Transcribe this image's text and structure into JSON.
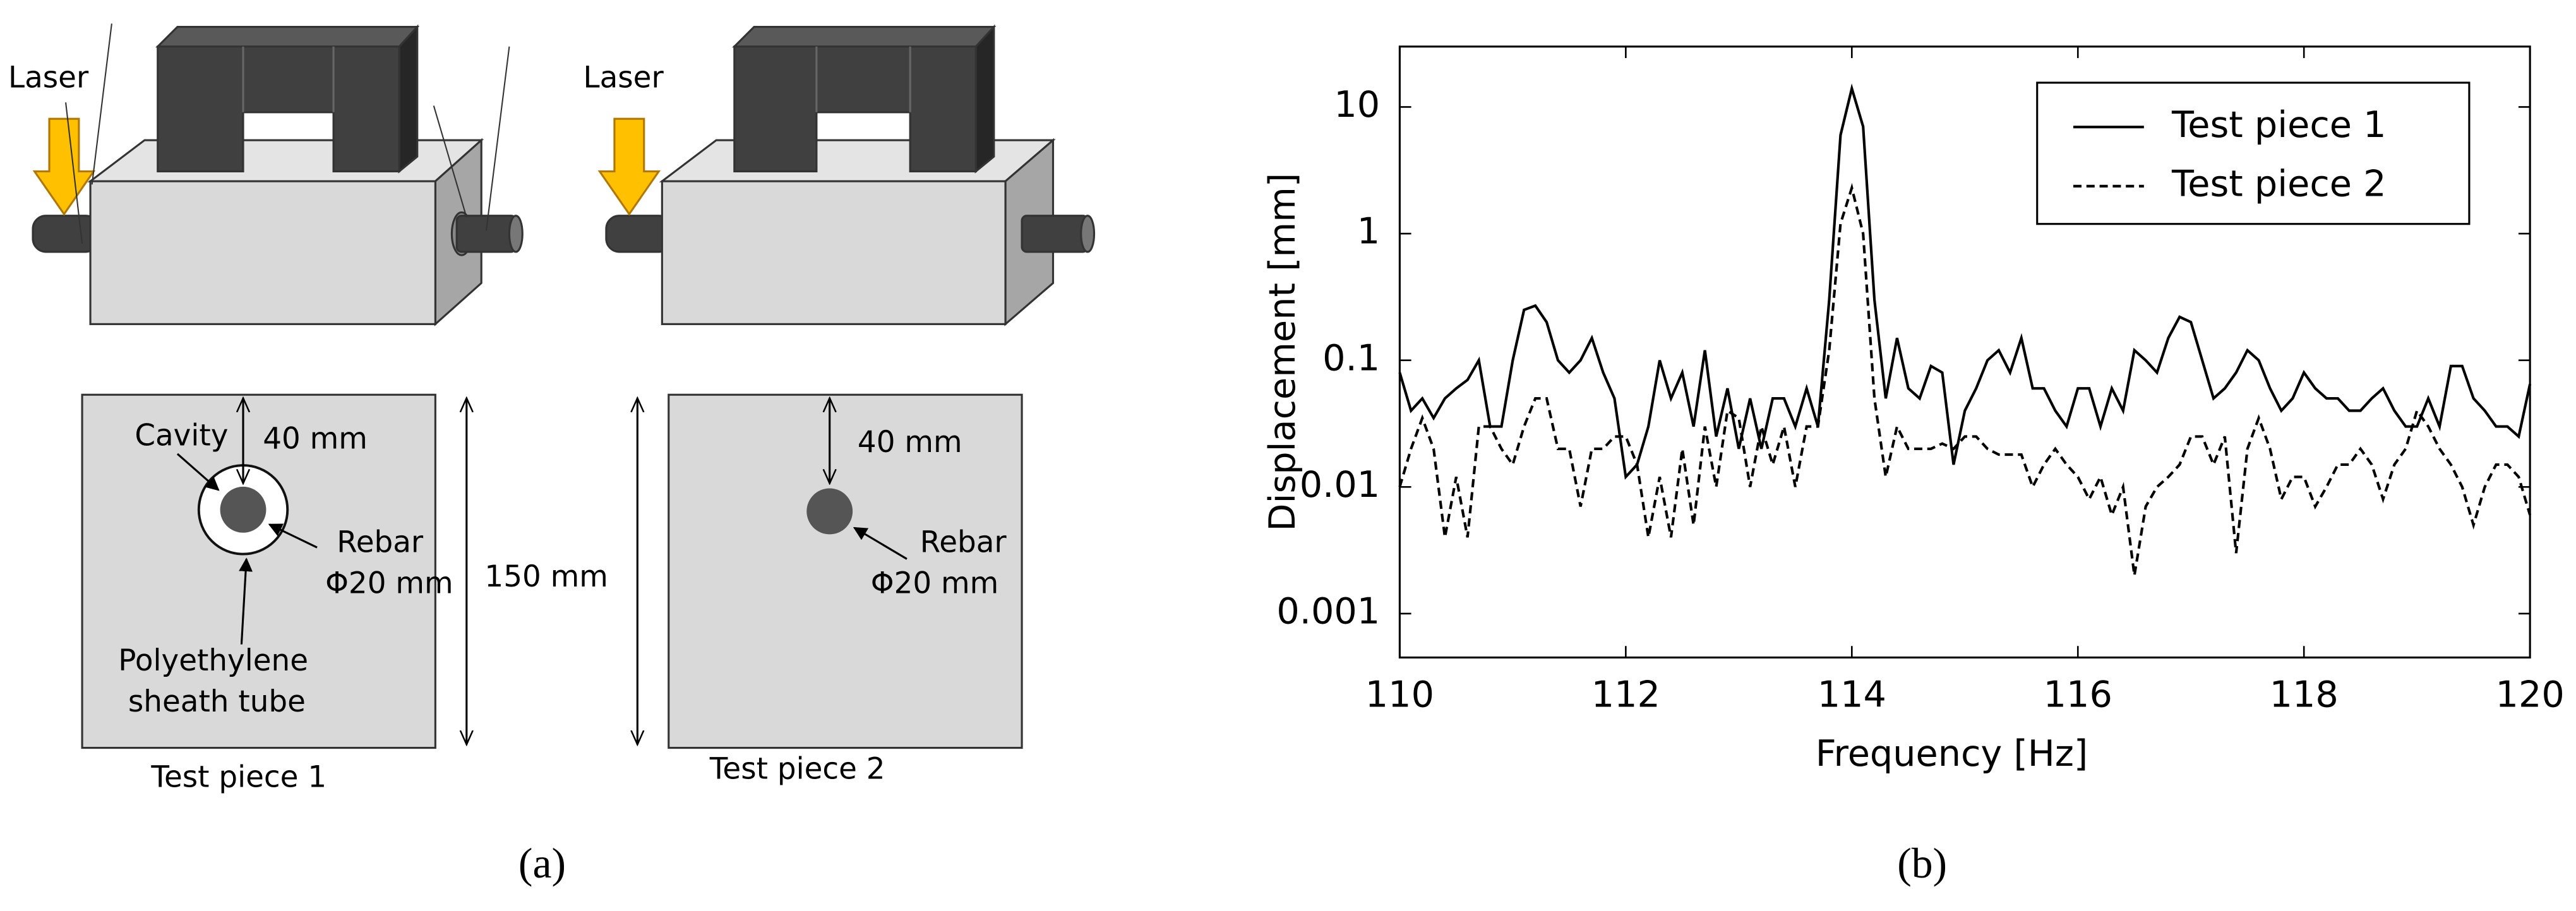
{
  "diagram": {
    "piece1": {
      "laser": "Laser",
      "cavity": "Cavity",
      "cover": "40 mm",
      "rebar": "Rebar",
      "rebar_size": "Φ20 mm",
      "sheath_line1": "Polyethylene",
      "sheath_line2": "sheath tube",
      "caption": "Test piece 1"
    },
    "piece2": {
      "laser": "Laser",
      "cover": "40 mm",
      "rebar": "Rebar",
      "rebar_size": "Φ20 mm",
      "caption": "Test piece 2"
    },
    "height": "150 mm",
    "panel_labels": [
      "(a)",
      "(b)"
    ]
  },
  "chart_data": {
    "type": "line",
    "xlabel": "Frequency [Hz]",
    "ylabel": "Displacement [mm]",
    "y_scale": "log",
    "grid": false,
    "legend": "upper right",
    "xlim": [
      110,
      120
    ],
    "xticks": [
      110,
      112,
      114,
      116,
      118,
      120
    ],
    "ylim": [
      0.00045,
      30
    ],
    "yticks": [
      0.001,
      0.01,
      0.1,
      1,
      10
    ],
    "x": [
      110.0,
      110.1,
      110.2,
      110.3,
      110.4,
      110.5,
      110.6,
      110.7,
      110.8,
      110.9,
      111.0,
      111.1,
      111.2,
      111.3,
      111.4,
      111.5,
      111.6,
      111.7,
      111.8,
      111.9,
      112.0,
      112.1,
      112.2,
      112.3,
      112.4,
      112.5,
      112.6,
      112.7,
      112.8,
      112.9,
      113.0,
      113.1,
      113.2,
      113.3,
      113.4,
      113.5,
      113.6,
      113.7,
      113.8,
      113.9,
      114.0,
      114.1,
      114.2,
      114.3,
      114.4,
      114.5,
      114.6,
      114.7,
      114.8,
      114.9,
      115.0,
      115.1,
      115.2,
      115.3,
      115.4,
      115.5,
      115.6,
      115.7,
      115.8,
      115.9,
      116.0,
      116.1,
      116.2,
      116.3,
      116.4,
      116.5,
      116.6,
      116.7,
      116.8,
      116.9,
      117.0,
      117.1,
      117.2,
      117.3,
      117.4,
      117.5,
      117.6,
      117.7,
      117.8,
      117.9,
      118.0,
      118.1,
      118.2,
      118.3,
      118.4,
      118.5,
      118.6,
      118.7,
      118.8,
      118.9,
      119.0,
      119.1,
      119.2,
      119.3,
      119.4,
      119.5,
      119.6,
      119.7,
      119.8,
      119.9,
      120.0
    ],
    "series": [
      {
        "name": "Test piece 1",
        "color": "#000000",
        "dash": "solid",
        "values": [
          0.08,
          0.04,
          0.05,
          0.035,
          0.05,
          0.06,
          0.07,
          0.1,
          0.03,
          0.03,
          0.1,
          0.25,
          0.27,
          0.2,
          0.1,
          0.08,
          0.1,
          0.15,
          0.08,
          0.05,
          0.012,
          0.015,
          0.03,
          0.1,
          0.05,
          0.08,
          0.03,
          0.12,
          0.025,
          0.06,
          0.02,
          0.05,
          0.02,
          0.05,
          0.05,
          0.03,
          0.06,
          0.03,
          0.3,
          6,
          14,
          7,
          0.3,
          0.05,
          0.15,
          0.06,
          0.05,
          0.09,
          0.08,
          0.015,
          0.04,
          0.06,
          0.1,
          0.12,
          0.08,
          0.15,
          0.06,
          0.06,
          0.04,
          0.03,
          0.06,
          0.06,
          0.03,
          0.06,
          0.04,
          0.12,
          0.1,
          0.08,
          0.15,
          0.22,
          0.2,
          0.1,
          0.05,
          0.06,
          0.08,
          0.12,
          0.1,
          0.06,
          0.04,
          0.05,
          0.08,
          0.06,
          0.05,
          0.05,
          0.04,
          0.04,
          0.05,
          0.06,
          0.04,
          0.03,
          0.03,
          0.05,
          0.03,
          0.09,
          0.09,
          0.05,
          0.04,
          0.03,
          0.03,
          0.025,
          0.065
        ]
      },
      {
        "name": "Test piece 2",
        "color": "#000000",
        "dash": "dashed",
        "values": [
          0.01,
          0.02,
          0.035,
          0.02,
          0.004,
          0.012,
          0.004,
          0.03,
          0.03,
          0.02,
          0.015,
          0.03,
          0.05,
          0.05,
          0.02,
          0.02,
          0.007,
          0.02,
          0.02,
          0.025,
          0.025,
          0.015,
          0.004,
          0.012,
          0.004,
          0.02,
          0.005,
          0.03,
          0.01,
          0.04,
          0.035,
          0.01,
          0.03,
          0.015,
          0.03,
          0.01,
          0.03,
          0.03,
          0.12,
          1.2,
          2.3,
          1,
          0.05,
          0.012,
          0.03,
          0.02,
          0.02,
          0.02,
          0.022,
          0.02,
          0.025,
          0.025,
          0.02,
          0.018,
          0.018,
          0.018,
          0.01,
          0.015,
          0.02,
          0.015,
          0.012,
          0.008,
          0.012,
          0.006,
          0.01,
          0.002,
          0.007,
          0.01,
          0.012,
          0.015,
          0.025,
          0.025,
          0.015,
          0.025,
          0.003,
          0.02,
          0.035,
          0.02,
          0.008,
          0.012,
          0.012,
          0.007,
          0.01,
          0.015,
          0.015,
          0.02,
          0.015,
          0.008,
          0.015,
          0.02,
          0.04,
          0.03,
          0.02,
          0.015,
          0.01,
          0.005,
          0.01,
          0.015,
          0.015,
          0.012,
          0.006
        ]
      }
    ]
  }
}
